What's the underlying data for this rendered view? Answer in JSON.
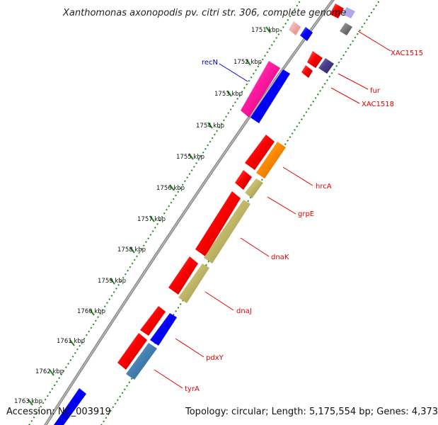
{
  "title": "Xanthomonas axonopodis pv. citri str. 306, complete genome",
  "footer": {
    "accession": "Accession: NC_003919",
    "topology": "Topology: circular; Length: 5,175,554 bp; Genes: 4,373"
  },
  "kbp_ticks": [
    "1751 kbp",
    "1752 kbp",
    "1753 kbp",
    "1754 kbp",
    "1755 kbp",
    "1756 kbp",
    "1757 kbp",
    "1758 kbp",
    "1759 kbp",
    "1760 kbp",
    "1761 kbp",
    "1762 kbp",
    "1763 kbp"
  ],
  "gene_labels": {
    "recN": "recN",
    "XAC1515": "XAC1515",
    "fur": "fur",
    "XAC1518": "XAC1518",
    "hrcA": "hrcA",
    "grpE": "grpE",
    "dnaK": "dnaK",
    "dnaJ": "dnaJ",
    "pdxY": "pdxY",
    "tyrA": "tyrA"
  },
  "colors": {
    "backbone": "#8e8e8e",
    "gc_dots": "#1f8a1f",
    "red": "#ff0000",
    "blue": "#0000ff",
    "magenta": "#ff1aa0",
    "orange": "#ff8c00",
    "khaki": "#c2b96a",
    "steelblue": "#4682b4",
    "navy": "#483d8b",
    "label_red": "#e00000",
    "label_blue": "#0000cc"
  }
}
